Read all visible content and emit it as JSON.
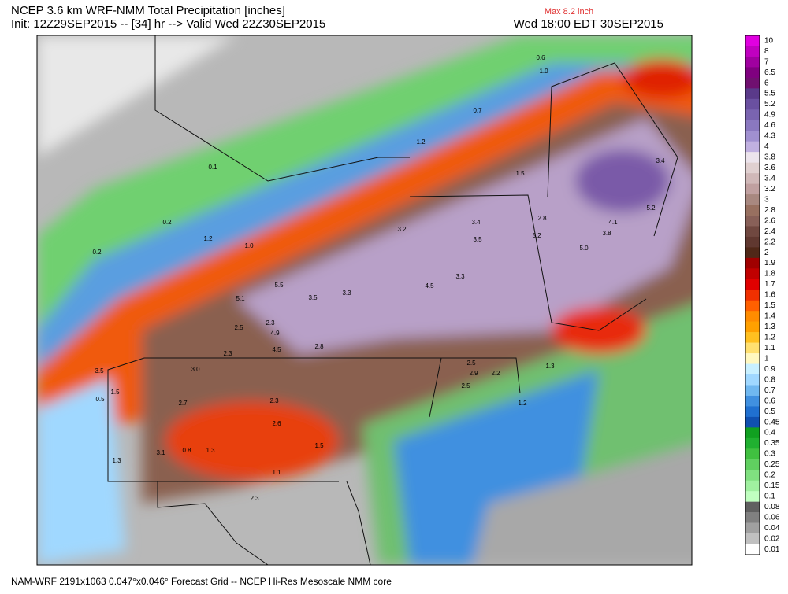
{
  "header": {
    "title": "NCEP 3.6 km WRF-NMM Total Precipitation [inches]",
    "init": "Init: 12Z29SEP2015 -- [34] hr --> Valid Wed 22Z30SEP2015",
    "max": "Max 8.2 inch",
    "valid": "Wed 18:00 EDT 30SEP2015"
  },
  "footer": "NAM-WRF 2191x1063 0.047°x0.046° Forecast Grid -- NCEP Hi-Res Mesoscale NMM core",
  "colorbar": [
    {
      "label": "10",
      "color": "#e000e0"
    },
    {
      "label": "8",
      "color": "#c000c0"
    },
    {
      "label": "7",
      "color": "#a000a0"
    },
    {
      "label": "6.5",
      "color": "#800080"
    },
    {
      "label": "6",
      "color": "#701070"
    },
    {
      "label": "5.5",
      "color": "#5a3a8a"
    },
    {
      "label": "5.2",
      "color": "#6a50a0"
    },
    {
      "label": "4.9",
      "color": "#7a64b0"
    },
    {
      "label": "4.6",
      "color": "#8a78c0"
    },
    {
      "label": "4.3",
      "color": "#a090d0"
    },
    {
      "label": "4",
      "color": "#c0b0e0"
    },
    {
      "label": "3.8",
      "color": "#ece4ec"
    },
    {
      "label": "3.6",
      "color": "#e0d0d0"
    },
    {
      "label": "3.4",
      "color": "#d0b8b8"
    },
    {
      "label": "3.2",
      "color": "#c0a0a0"
    },
    {
      "label": "3",
      "color": "#a88880"
    },
    {
      "label": "2.8",
      "color": "#987060"
    },
    {
      "label": "2.6",
      "color": "#886058"
    },
    {
      "label": "2.4",
      "color": "#704840"
    },
    {
      "label": "2.2",
      "color": "#603830"
    },
    {
      "label": "2",
      "color": "#502818"
    },
    {
      "label": "1.9",
      "color": "#a00000"
    },
    {
      "label": "1.8",
      "color": "#c00000"
    },
    {
      "label": "1.7",
      "color": "#e00000"
    },
    {
      "label": "1.6",
      "color": "#f03000"
    },
    {
      "label": "1.5",
      "color": "#ff6000"
    },
    {
      "label": "1.4",
      "color": "#ff8c00"
    },
    {
      "label": "1.3",
      "color": "#ffa000"
    },
    {
      "label": "1.2",
      "color": "#ffc020"
    },
    {
      "label": "1.1",
      "color": "#ffe070"
    },
    {
      "label": "1",
      "color": "#fff8c0"
    },
    {
      "label": "0.9",
      "color": "#c8f0ff"
    },
    {
      "label": "0.8",
      "color": "#a0d8ff"
    },
    {
      "label": "0.7",
      "color": "#70b8f0"
    },
    {
      "label": "0.6",
      "color": "#4090e0"
    },
    {
      "label": "0.5",
      "color": "#2070d0"
    },
    {
      "label": "0.45",
      "color": "#1050b0"
    },
    {
      "label": "0.4",
      "color": "#10a020"
    },
    {
      "label": "0.35",
      "color": "#20b030"
    },
    {
      "label": "0.3",
      "color": "#40c040"
    },
    {
      "label": "0.25",
      "color": "#60d060"
    },
    {
      "label": "0.2",
      "color": "#80e080"
    },
    {
      "label": "0.15",
      "color": "#a0f0a0"
    },
    {
      "label": "0.1",
      "color": "#c0ffc0"
    },
    {
      "label": "0.08",
      "color": "#606060"
    },
    {
      "label": "0.06",
      "color": "#808080"
    },
    {
      "label": "0.04",
      "color": "#a0a0a0"
    },
    {
      "label": "0.02",
      "color": "#c0c0c0"
    },
    {
      "label": "0.01",
      "color": "#ffffff"
    }
  ],
  "map_labels": [
    "0.6",
    "1.0",
    "0.7",
    "1.2",
    "1.5",
    "3.4",
    "5.2",
    "4.1",
    "3.8",
    "5.0",
    "2.8",
    "5.2",
    "3.4",
    "3.5",
    "3.2",
    "3.3",
    "5.1",
    "5.5",
    "3.5",
    "3.3",
    "4.5",
    "4.9",
    "2.5",
    "2.3",
    "4.5",
    "2.8",
    "3.0",
    "2.7",
    "2.3",
    "1.5",
    "3.5",
    "1.3",
    "3.1",
    "0.8",
    "1.3",
    "2.3",
    "2.6",
    "1.5",
    "1.1",
    "2.3",
    "2.5",
    "2.9",
    "2.2",
    "2.5",
    "1.3",
    "1.2",
    "0.5",
    "0.2",
    "0.1",
    "0.2",
    "1.2",
    "1.0"
  ]
}
